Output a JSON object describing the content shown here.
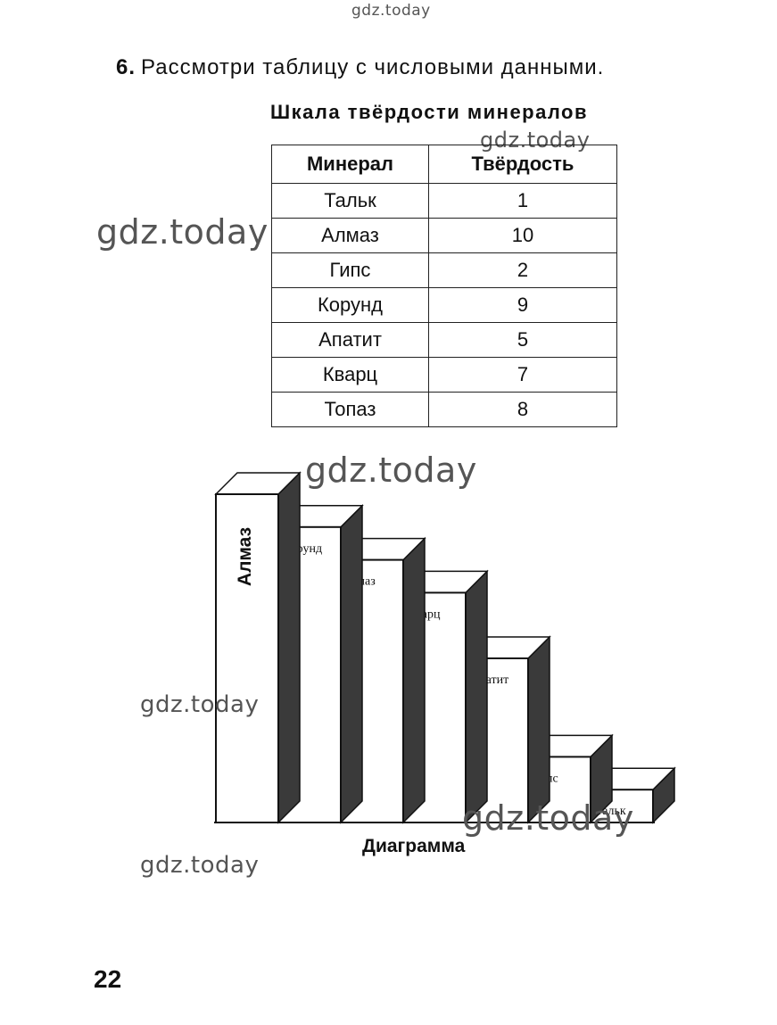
{
  "watermarks": [
    "gdz.today",
    "gdz.today",
    "gdz.today",
    "gdz.today",
    "gdz.today",
    "gdz.today",
    "gdz.today"
  ],
  "task": {
    "number": "6.",
    "text": "Рассмотри таблицу с числовыми данными."
  },
  "table": {
    "title": "Шкала твёрдости минералов",
    "headers": [
      "Минерал",
      "Твёрдость"
    ],
    "rows": [
      [
        "Тальк",
        "1"
      ],
      [
        "Алмаз",
        "10"
      ],
      [
        "Гипс",
        "2"
      ],
      [
        "Корунд",
        "9"
      ],
      [
        "Апатит",
        "5"
      ],
      [
        "Кварц",
        "7"
      ],
      [
        "Топаз",
        "8"
      ]
    ]
  },
  "chart_data": {
    "type": "bar",
    "categories": [
      "Алмаз",
      "Корунд",
      "Топаз",
      "Кварц",
      "Апатит",
      "Гипс",
      "Тальк"
    ],
    "values": [
      10,
      9,
      8,
      7,
      5,
      2,
      1
    ],
    "title": "Диаграмма",
    "xlabel": "",
    "ylabel": "",
    "ylim": [
      0,
      10
    ],
    "grid": false,
    "colors": {
      "front": "#ffffff",
      "top": "#ffffff",
      "side": "#3a3a3a",
      "stroke": "#111111"
    }
  },
  "page_number": "22"
}
